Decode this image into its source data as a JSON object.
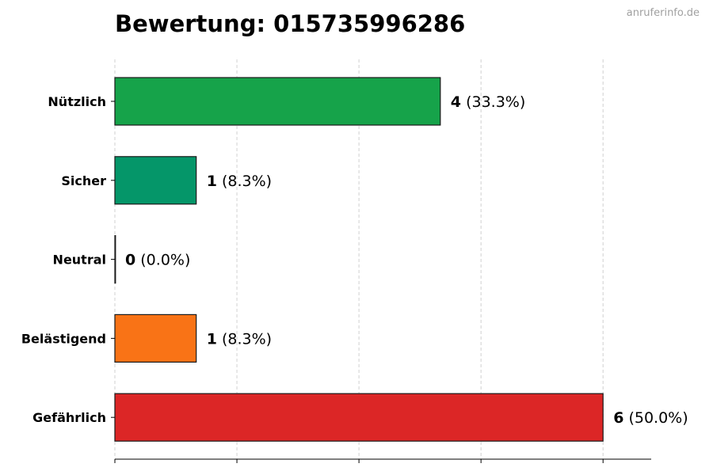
{
  "site": "anruferinfo.de",
  "chart_data": {
    "type": "bar",
    "orientation": "horizontal",
    "title": "Bewertung: 015735996286",
    "xlabel": "",
    "ylabel": "",
    "xlim": [
      0,
      6
    ],
    "grid": "vertical-dashed",
    "legend": "none",
    "categories": [
      "Nützlich",
      "Sicher",
      "Neutral",
      "Belästigend",
      "Gefährlich"
    ],
    "values": [
      4,
      1,
      0,
      1,
      6
    ],
    "value_labels": [
      "4",
      "1",
      "0",
      "1",
      "6"
    ],
    "percent_labels": [
      "(33.3%)",
      "(8.3%)",
      "(0.0%)",
      "(8.3%)",
      "(50.0%)"
    ],
    "colors": [
      "#16a34a",
      "#059669",
      "#6b7280",
      "#f97316",
      "#dc2626"
    ]
  }
}
